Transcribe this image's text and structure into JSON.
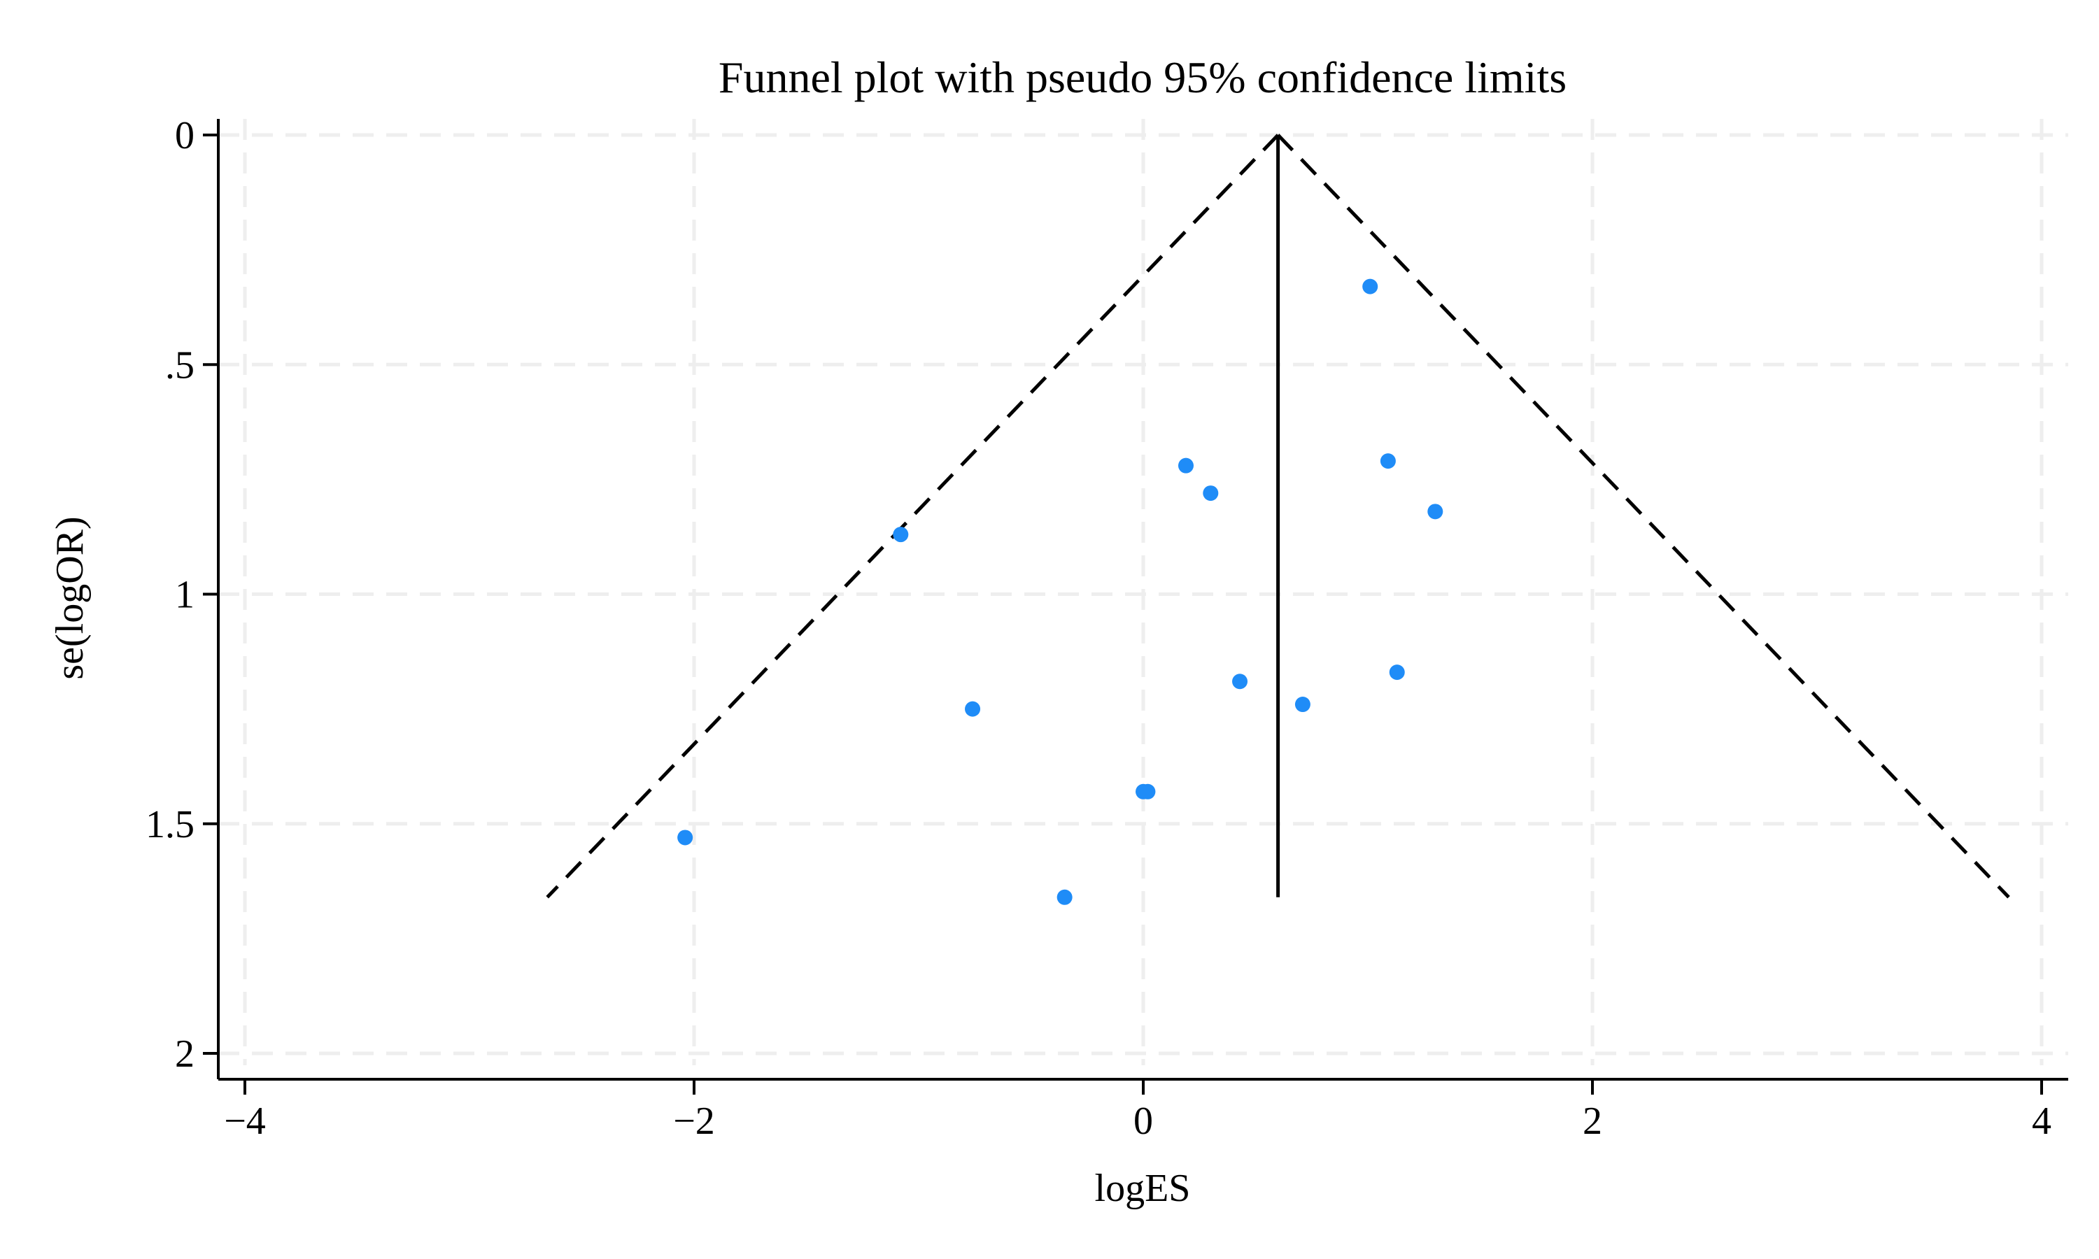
{
  "chart_data": {
    "type": "scatter",
    "title": "Funnel plot with pseudo 95% confidence limits",
    "xlabel": "logES",
    "ylabel": "se(logOR)",
    "xlim": [
      -4,
      4
    ],
    "ylim": [
      0,
      2
    ],
    "y_reversed": true,
    "grid": true,
    "legend": "none",
    "x_ticks": [
      {
        "value": -4,
        "label": "−4"
      },
      {
        "value": -2,
        "label": "−2"
      },
      {
        "value": 0,
        "label": "0"
      },
      {
        "value": 2,
        "label": "2"
      },
      {
        "value": 4,
        "label": "4"
      }
    ],
    "y_ticks": [
      {
        "value": 0,
        "label": "0"
      },
      {
        "value": 0.5,
        "label": ".5"
      },
      {
        "value": 1,
        "label": "1"
      },
      {
        "value": 1.5,
        "label": "1.5"
      },
      {
        "value": 2,
        "label": "2"
      }
    ],
    "pooled_estimate": 0.6,
    "funnel_se_max": 1.66,
    "points": [
      {
        "x": 1.01,
        "y": 0.33
      },
      {
        "x": 0.19,
        "y": 0.72
      },
      {
        "x": 1.09,
        "y": 0.71
      },
      {
        "x": 0.3,
        "y": 0.78
      },
      {
        "x": 1.3,
        "y": 0.82
      },
      {
        "x": -1.08,
        "y": 0.87
      },
      {
        "x": 1.13,
        "y": 1.17
      },
      {
        "x": 0.43,
        "y": 1.19
      },
      {
        "x": 0.71,
        "y": 1.24
      },
      {
        "x": -0.76,
        "y": 1.25
      },
      {
        "x": 0.0,
        "y": 1.43
      },
      {
        "x": 0.02,
        "y": 1.43
      },
      {
        "x": -2.04,
        "y": 1.53
      },
      {
        "x": -0.35,
        "y": 1.66
      }
    ],
    "colors": {
      "points": "#1f8cf7",
      "funnel": "#000000",
      "axis": "#000000",
      "grid": "#eeeeee"
    }
  }
}
